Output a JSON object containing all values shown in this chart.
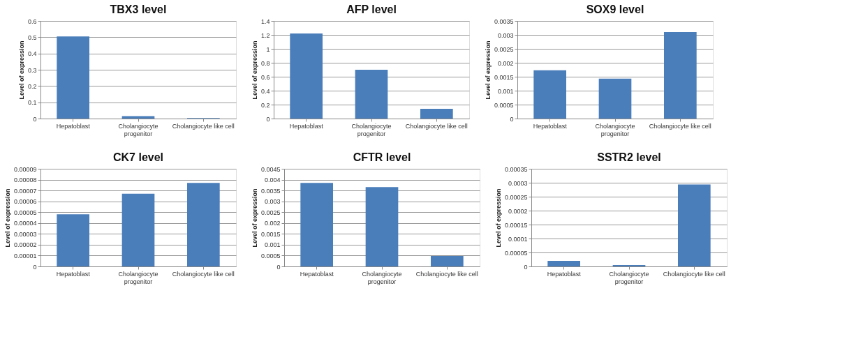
{
  "chart_data": [
    {
      "type": "bar",
      "title": "TBX3 level",
      "ylabel": "Level of expression",
      "categories": [
        "Hepatoblast",
        "Cholangiocyte progenitor",
        "Cholangiocyte like cell"
      ],
      "values": [
        0.505,
        0.015,
        0.003
      ],
      "color": "#4a7ebb",
      "ylim": [
        0,
        0.6
      ],
      "yticks": [
        0,
        0.1,
        0.2,
        0.3,
        0.4,
        0.5,
        0.6
      ],
      "grid": "y",
      "legend": false
    },
    {
      "type": "bar",
      "title": "AFP level",
      "ylabel": "Level of expression",
      "categories": [
        "Hepatoblast",
        "Cholangiocyte progenitor",
        "Cholangiocyte like cell"
      ],
      "values": [
        1.22,
        0.7,
        0.14
      ],
      "color": "#4a7ebb",
      "ylim": [
        0,
        1.4
      ],
      "yticks": [
        0,
        0.2,
        0.4,
        0.6,
        0.8,
        1,
        1.2,
        1.4
      ],
      "grid": "y",
      "legend": false
    },
    {
      "type": "bar",
      "title": "SOX9 level",
      "ylabel": "Level of expression",
      "categories": [
        "Hepatoblast",
        "Cholangiocyte progenitor",
        "Cholangiocyte like cell"
      ],
      "values": [
        0.00173,
        0.00143,
        0.0031
      ],
      "color": "#4a7ebb",
      "ylim": [
        0,
        0.0035
      ],
      "yticks": [
        0,
        0.0005,
        0.001,
        0.0015,
        0.002,
        0.0025,
        0.003,
        0.0035
      ],
      "grid": "y",
      "legend": false
    },
    {
      "type": "bar",
      "title": "CK7 level",
      "ylabel": "Level of expression",
      "categories": [
        "Hepatoblast",
        "Cholangiocyte progenitor",
        "Cholangiocyte like cell"
      ],
      "values": [
        4.8e-05,
        6.7e-05,
        7.7e-05
      ],
      "color": "#4a7ebb",
      "ylim": [
        0,
        9e-05
      ],
      "yticks": [
        0,
        {
          "value": 1e-05,
          "label": "0.00001"
        },
        {
          "value": 2e-05,
          "label": "0.00002"
        },
        {
          "value": 3e-05,
          "label": "0.00003"
        },
        {
          "value": 4e-05,
          "label": "0.00004"
        },
        {
          "value": 5e-05,
          "label": "0.00005"
        },
        {
          "value": 6e-05,
          "label": "0.00006"
        },
        {
          "value": 7e-05,
          "label": "0.00007"
        },
        {
          "value": 8e-05,
          "label": "0.00008"
        },
        {
          "value": 9e-05,
          "label": "0.00009"
        }
      ],
      "grid": "y",
      "legend": false
    },
    {
      "type": "bar",
      "title": "CFTR level",
      "ylabel": "Level of expression",
      "categories": [
        "Hepatoblast",
        "Cholangiocyte progenitor",
        "Cholangiocyte like cell"
      ],
      "values": [
        0.00385,
        0.00366,
        0.00048
      ],
      "color": "#4a7ebb",
      "ylim": [
        0,
        0.0045
      ],
      "yticks": [
        0,
        0.0005,
        0.001,
        0.0015,
        0.002,
        0.0025,
        0.003,
        0.0035,
        0.004,
        0.0045
      ],
      "grid": "y",
      "legend": false
    },
    {
      "type": "bar",
      "title": "SSTR2 level",
      "ylabel": "Level of expression",
      "categories": [
        "Hepatoblast",
        "Cholangiocyte progenitor",
        "Cholangiocyte like cell"
      ],
      "values": [
        2e-05,
        5e-06,
        0.000294
      ],
      "color": "#4a7ebb",
      "ylim": [
        0,
        0.00035
      ],
      "yticks": [
        0,
        {
          "value": 5e-05,
          "label": "0.00005"
        },
        0.0001,
        0.00015,
        0.0002,
        0.00025,
        0.0003,
        0.00035
      ],
      "grid": "y",
      "legend": false
    }
  ]
}
